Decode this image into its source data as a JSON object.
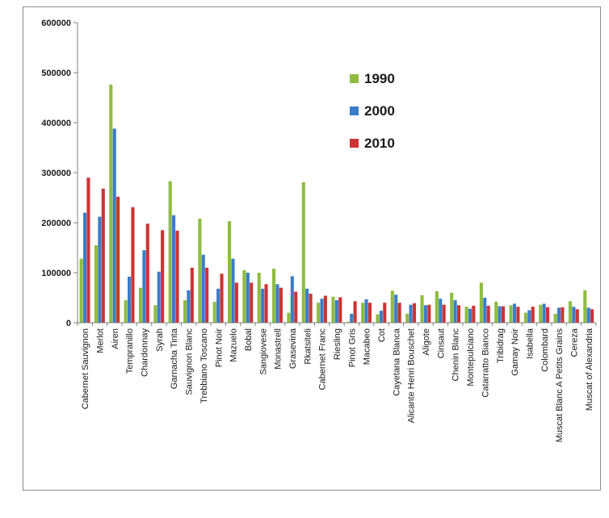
{
  "chart_data": {
    "type": "bar",
    "title": "",
    "xlabel": "",
    "ylabel": "",
    "ylim": [
      0,
      600000
    ],
    "y_ticks": [
      0,
      100000,
      200000,
      300000,
      400000,
      500000,
      600000
    ],
    "grid": false,
    "legend_position": "upper-center",
    "categories": [
      "Cabernet Sauvignon",
      "Merlot",
      "Airen",
      "Tempranillo",
      "Chardonnay",
      "Syrah",
      "Garnacha Tinta",
      "Sauvignon Blanc",
      "Trebbiano Toscano",
      "Pinot Noir",
      "Mazuelo",
      "Bobal",
      "Sangiovese",
      "Monastrell",
      "Grasevina",
      "Rkatsiteli",
      "Cabernet Franc",
      "Riesling",
      "Pinot Gris",
      "Macabeo",
      "Cot",
      "Cayetana Blanca",
      "Alicante Henri Bouschet",
      "Aligote",
      "Cinsaut",
      "Chenin Blanc",
      "Montepulciano",
      "Catarratto Bianco",
      "Tribidrag",
      "Gamay Noir",
      "Isabella",
      "Colombard",
      "Muscat Blanc A Petits Grains",
      "Cereza",
      "Muscat of Alexandria"
    ],
    "series": [
      {
        "name": "1990",
        "color": "#8fbc3f",
        "values": [
          128000,
          155000,
          476000,
          45000,
          70000,
          35000,
          283000,
          45000,
          208000,
          42000,
          203000,
          105000,
          100000,
          108000,
          20000,
          281000,
          40000,
          52000,
          2000,
          40000,
          17000,
          64000,
          18000,
          55000,
          63000,
          60000,
          32000,
          80000,
          42000,
          35000,
          20000,
          36000,
          18000,
          43000,
          65000
        ]
      },
      {
        "name": "2000",
        "color": "#3a7dc9",
        "values": [
          220000,
          212000,
          388000,
          92000,
          145000,
          102000,
          215000,
          65000,
          136000,
          68000,
          128000,
          100000,
          68000,
          77000,
          93000,
          68000,
          48000,
          45000,
          18000,
          47000,
          24000,
          56000,
          36000,
          35000,
          48000,
          45000,
          28000,
          50000,
          33000,
          38000,
          25000,
          38000,
          30000,
          32000,
          30000
        ]
      },
      {
        "name": "2010",
        "color": "#cc3333",
        "values": [
          290000,
          268000,
          252000,
          231000,
          198000,
          185000,
          184000,
          110000,
          110000,
          98000,
          80000,
          80000,
          77000,
          70000,
          62000,
          58000,
          54000,
          51000,
          43000,
          40000,
          40000,
          40000,
          39000,
          36000,
          36000,
          35000,
          34000,
          34000,
          33000,
          32000,
          32000,
          31000,
          31000,
          27000,
          27000
        ]
      }
    ]
  }
}
